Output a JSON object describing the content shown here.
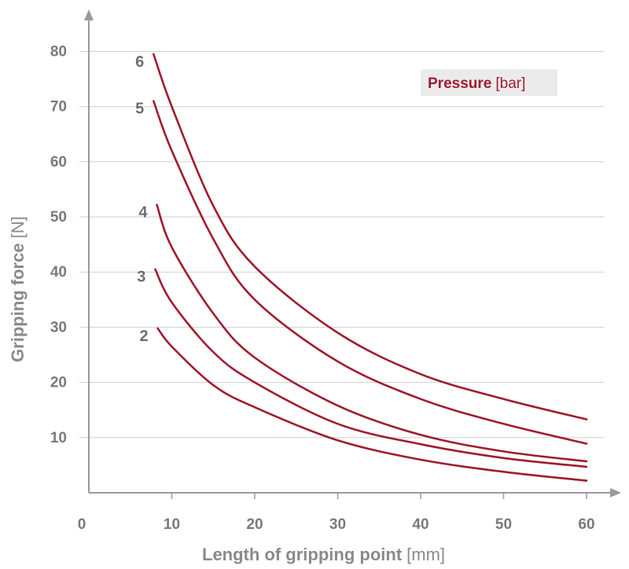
{
  "chart_data": {
    "type": "line",
    "xlabel": "Length of gripping point",
    "xlabel_unit": "[mm]",
    "ylabel": "Gripping force",
    "ylabel_unit": "[N]",
    "xlim": [
      0,
      65
    ],
    "ylim": [
      0,
      85
    ],
    "x_ticks": [
      "0",
      "10",
      "20",
      "30",
      "40",
      "50",
      "60"
    ],
    "y_ticks": [
      "10",
      "20",
      "30",
      "40",
      "50",
      "60",
      "70",
      "80"
    ],
    "grid": "horizontal",
    "legend": {
      "title": "Pressure",
      "unit": "[bar]",
      "placement": "top-right",
      "background": "#ebebeb",
      "color": "#a01c2e"
    },
    "line_color": "#a01c2e",
    "series": [
      {
        "name": "6",
        "x": [
          7.8,
          10,
          15,
          20,
          30,
          40,
          50,
          60
        ],
        "y": [
          79.5,
          70,
          52,
          41,
          29,
          21.5,
          17,
          13.3
        ]
      },
      {
        "name": "5",
        "x": [
          7.8,
          10,
          15,
          20,
          30,
          40,
          50,
          60
        ],
        "y": [
          71,
          62,
          46,
          35,
          23.8,
          17,
          12.5,
          8.9
        ]
      },
      {
        "name": "4",
        "x": [
          8.2,
          10,
          15,
          20,
          30,
          40,
          50,
          60
        ],
        "y": [
          52.2,
          44.5,
          32.5,
          24.5,
          15.8,
          10.5,
          7.5,
          5.7
        ]
      },
      {
        "name": "3",
        "x": [
          8.0,
          10,
          15,
          20,
          30,
          40,
          50,
          60
        ],
        "y": [
          40.5,
          34.5,
          25.5,
          20,
          12.5,
          8.8,
          6.3,
          4.7
        ]
      },
      {
        "name": "2",
        "x": [
          8.3,
          10,
          15,
          20,
          30,
          40,
          50,
          60
        ],
        "y": [
          29.8,
          26.5,
          19.5,
          15.5,
          9.5,
          6,
          3.8,
          2.2
        ]
      }
    ]
  }
}
